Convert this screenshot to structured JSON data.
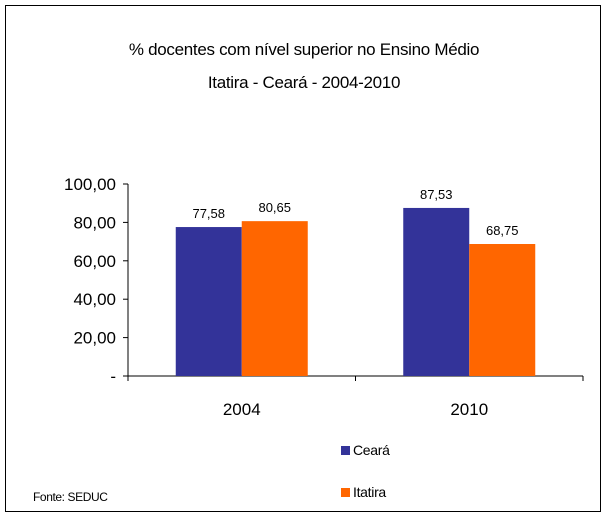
{
  "chart_data": {
    "type": "bar",
    "title": "% docentes com nível  superior no Ensino Médio",
    "subtitle": "Itatira -  Ceará - 2004-2010",
    "categories": [
      "2004",
      "2010"
    ],
    "series": [
      {
        "name": "Ceará",
        "values": [
          77.58,
          87.53
        ],
        "labels": [
          "77,58",
          "87,53"
        ],
        "color": "#333399"
      },
      {
        "name": "Itatira",
        "values": [
          80.65,
          68.75
        ],
        "labels": [
          "80,65",
          "68,75"
        ],
        "color": "#ff6600"
      }
    ],
    "ylim": [
      0,
      100
    ],
    "yticks": [
      0,
      20,
      40,
      60,
      80,
      100
    ],
    "ytick_labels": [
      "-",
      "20,00",
      "40,00",
      "60,00",
      "80,00",
      "100,00"
    ],
    "grid": false,
    "legend_position": "bottom-right",
    "source": "Fonte: SEDUC"
  }
}
